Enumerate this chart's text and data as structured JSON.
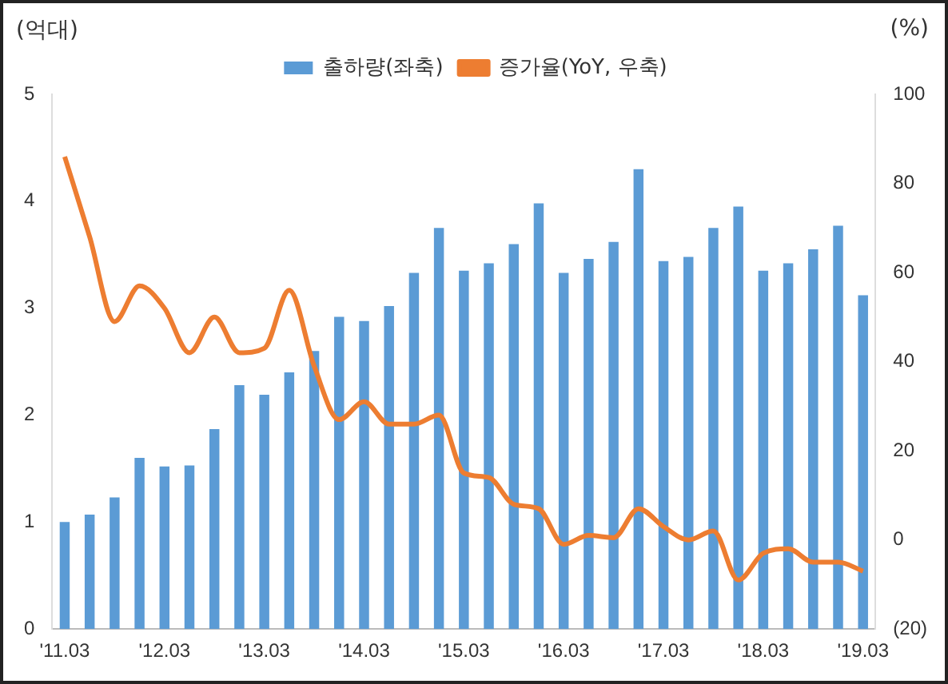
{
  "chart_data": {
    "type": "bar",
    "ylabel": "(억대)",
    "y2label": "(%)",
    "categories": [
      "'11.03",
      null,
      null,
      null,
      "'12.03",
      null,
      null,
      null,
      "'13.03",
      null,
      null,
      null,
      "'14.03",
      null,
      null,
      null,
      "'15.03",
      null,
      null,
      null,
      "'16.03",
      null,
      null,
      null,
      "'17.03",
      null,
      null,
      null,
      "'18.03",
      null,
      null,
      null,
      "'19.03"
    ],
    "series": [
      {
        "name": "출하량(좌축)",
        "color": "#5b9bd5",
        "values": [
          1.0,
          1.07,
          1.23,
          1.6,
          1.52,
          1.53,
          1.87,
          2.28,
          2.19,
          2.4,
          2.6,
          2.92,
          2.88,
          3.02,
          3.33,
          3.75,
          3.35,
          3.42,
          3.6,
          3.98,
          3.33,
          3.46,
          3.62,
          4.3,
          3.44,
          3.48,
          3.75,
          3.95,
          3.35,
          3.42,
          3.55,
          3.77,
          3.12
        ]
      },
      {
        "name": "증가율(YoY, 우축)",
        "type": "line",
        "axis": "y2",
        "color": "#ed7d31",
        "values": [
          86,
          68,
          49,
          57,
          52,
          42,
          50,
          42,
          43,
          56,
          39,
          27,
          31,
          26,
          26,
          28,
          15,
          14,
          8,
          7,
          -1,
          1,
          0.5,
          7,
          3,
          0,
          2,
          -9,
          -3,
          -2,
          -5,
          -5,
          -7
        ]
      }
    ],
    "ylim": [
      0,
      5
    ],
    "yticks": [
      0,
      1,
      2,
      3,
      4,
      5
    ],
    "y2lim": [
      -20,
      100
    ],
    "y2ticks": [
      {
        "value": -20,
        "label": "(20)"
      },
      0,
      20,
      40,
      60,
      80,
      100
    ],
    "grid": false,
    "legend": "top",
    "marker": "none"
  }
}
